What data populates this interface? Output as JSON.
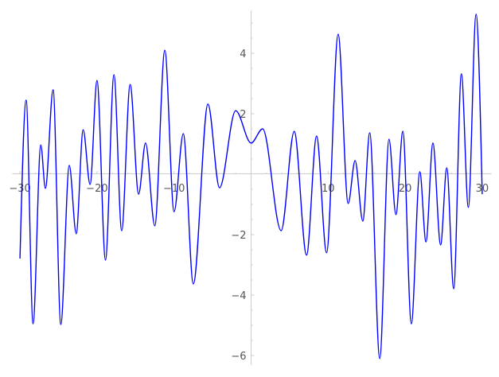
{
  "chart_data": {
    "type": "line",
    "title": "",
    "xlabel": "",
    "ylabel": "",
    "xlim": [
      -31,
      31.2
    ],
    "ylim": [
      -6.3,
      5.4
    ],
    "grid": false,
    "axes_through_origin": true,
    "line_color": "#0000ff",
    "axis_color": "#cccccc",
    "tick_label_color": "#555555",
    "x_ticks": [
      -30,
      -20,
      -10,
      10,
      20,
      30
    ],
    "x_tick_labels": [
      "−30",
      "−20",
      "−10",
      "10",
      "20",
      "30"
    ],
    "y_ticks": [
      -6,
      -4,
      -2,
      2,
      4
    ],
    "y_tick_labels": [
      "−6",
      "−4",
      "−2",
      "2",
      "4"
    ],
    "series": [
      {
        "x": [
          -30,
          -29.2,
          -28.3,
          -27.3,
          -26.7,
          -25.7,
          -24.7,
          -23.6,
          -22.7,
          -21.8,
          -20.9,
          -20.0,
          -18.9,
          -17.8,
          -16.8,
          -15.7,
          -14.6,
          -13.7,
          -12.5,
          -11.2,
          -10.0,
          -8.8,
          -7.5,
          -5.6,
          -4.1,
          -2.0,
          0,
          1.5,
          3.9,
          5.6,
          7.2,
          8.5,
          9.8,
          11.3,
          12.6,
          13.5,
          14.5,
          15.4,
          16.7,
          17.9,
          18.8,
          19.7,
          20.8,
          21.9,
          22.7,
          23.6,
          24.6,
          25.4,
          26.3,
          27.3,
          28.2,
          29.2,
          30
        ],
        "y": [
          -2.79,
          2.45,
          -4.95,
          0.97,
          -0.47,
          2.79,
          -4.97,
          0.29,
          -1.97,
          1.47,
          -0.34,
          3.1,
          -2.84,
          3.29,
          -1.87,
          2.97,
          -0.66,
          1.03,
          -1.71,
          4.1,
          -1.24,
          1.34,
          -3.63,
          2.32,
          -0.45,
          2.1,
          1.03,
          1.5,
          -1.87,
          1.42,
          -2.68,
          1.26,
          -2.6,
          4.63,
          -0.97,
          0.45,
          -1.55,
          1.37,
          -6.1,
          1.16,
          -1.34,
          1.42,
          -4.95,
          0.08,
          -2.24,
          1.03,
          -2.34,
          0.21,
          -3.79,
          3.32,
          -1.1,
          5.29,
          -0.66
        ]
      }
    ]
  }
}
